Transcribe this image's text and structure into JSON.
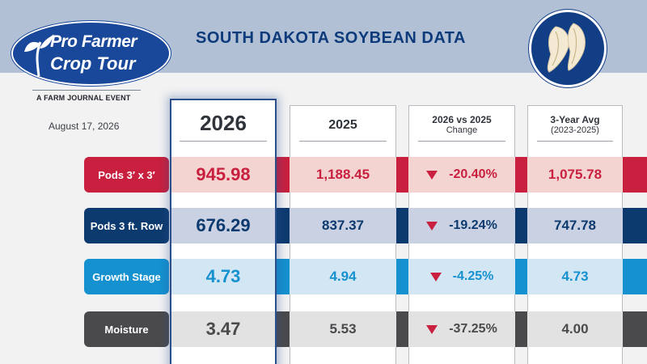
{
  "header": {
    "title": "SOUTH DAKOTA SOYBEAN DATA",
    "logo_line1": "Pro Farmer",
    "logo_line2": "Crop Tour",
    "logo_subtitle": "A FARM JOURNAL EVENT",
    "badge_icon": "soybean-pod-icon"
  },
  "date": "August 17, 2026",
  "columns": [
    {
      "title": "2026",
      "subtitle": ""
    },
    {
      "title": "2025",
      "subtitle": ""
    },
    {
      "title": "2026 vs 2025",
      "subtitle": "Change"
    },
    {
      "title": "3-Year Avg",
      "subtitle": "(2023-2025)"
    }
  ],
  "rows": [
    {
      "label": "Pods 3′ x 3′",
      "v2026": "945.98",
      "v2025": "1,188.45",
      "change": "-20.40%",
      "avg": "1,075.78",
      "color": "#c8203e",
      "tint": "#f4d4d1",
      "text": "#c8203e"
    },
    {
      "label": "Pods 3 ft. Row",
      "v2026": "676.29",
      "v2025": "837.37",
      "change": "-19.24%",
      "avg": "747.78",
      "color": "#0d3a6e",
      "tint": "#c9d1e3",
      "text": "#0d3a6e"
    },
    {
      "label": "Growth Stage",
      "v2026": "4.73",
      "v2025": "4.94",
      "change": "-4.25%",
      "avg": "4.73",
      "color": "#1591d0",
      "tint": "#d3e6f4",
      "text": "#1591d0"
    },
    {
      "label": "Moisture",
      "v2026": "3.47",
      "v2025": "5.53",
      "change": "-37.25%",
      "avg": "4.00",
      "color": "#4a4a4c",
      "tint": "#e2e2e3",
      "text": "#4a4a4c"
    }
  ],
  "change_indicator": "down-triangle-icon",
  "accent_colors": {
    "header_band": "#b2c0d6",
    "title": "#0d3a7a",
    "logo": "#19479a",
    "down": "#c8203e"
  }
}
